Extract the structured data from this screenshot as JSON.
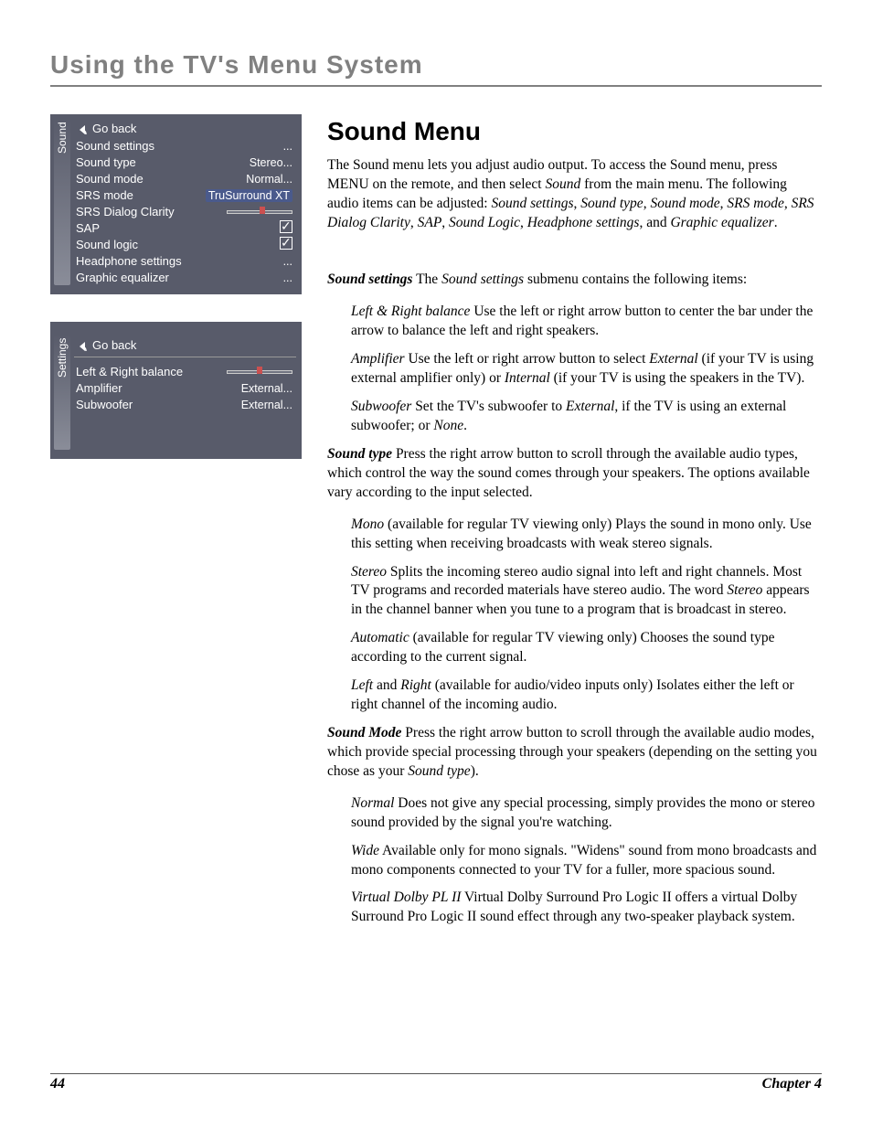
{
  "page_title": "Using the TV's Menu System",
  "section_title": "Sound Menu",
  "intro": "The Sound menu lets you adjust audio output. To access the Sound menu, press MENU on the remote, and then select ",
  "intro_sound": "Sound",
  "intro_2": " from the main menu. The following audio items can be adjusted: ",
  "intro_items": [
    "Sound settings",
    "Sound type",
    "Sound mode",
    "SRS mode",
    "SRS Dialog Clarity",
    "SAP",
    "Sound Logic",
    "Headphone settings"
  ],
  "intro_and": ", and ",
  "intro_last": "Graphic equalizer",
  "intro_period": ".",
  "osd1": {
    "tab": "Sound",
    "rows": [
      {
        "label": "Go back",
        "value": "",
        "type": "goback"
      },
      {
        "label": "Sound settings",
        "value": "...",
        "type": "text"
      },
      {
        "label": "Sound type",
        "value": "Stereo...",
        "type": "text"
      },
      {
        "label": "Sound mode",
        "value": "Normal...",
        "type": "text"
      },
      {
        "label": "SRS mode",
        "value": "TruSurround XT",
        "type": "hi"
      },
      {
        "label": "SRS Dialog Clarity",
        "value": "slider",
        "type": "slider",
        "thumb": 0.55
      },
      {
        "label": "SAP",
        "value": "",
        "type": "check"
      },
      {
        "label": "Sound logic",
        "value": "",
        "type": "check"
      },
      {
        "label": "Headphone settings",
        "value": "...",
        "type": "text"
      },
      {
        "label": "Graphic equalizer",
        "value": "...",
        "type": "text"
      }
    ]
  },
  "osd2": {
    "tab": "Settings",
    "rows": [
      {
        "label": "Go back",
        "value": "",
        "type": "goback"
      },
      {
        "label": "",
        "value": "",
        "type": "divider"
      },
      {
        "label": "Left & Right balance",
        "value": "slider",
        "type": "slider",
        "thumb": 0.5
      },
      {
        "label": "Amplifier",
        "value": "External...",
        "type": "text"
      },
      {
        "label": "Subwoofer",
        "value": "External...",
        "type": "text"
      }
    ]
  },
  "body": {
    "ss_head": "Sound settings",
    "ss_text": "   The ",
    "ss_sub": "Sound settings",
    "ss_text2": " submenu contains the following items:",
    "lr_head": "Left & Right balance",
    "lr_text": "    Use the left or right arrow button to center the bar under the arrow to balance the left and right speakers.",
    "amp_head": "Amplifier",
    "amp_text": "    Use the left or right arrow button to select ",
    "amp_ext": "External",
    "amp_text2": " (if your TV is using external amplifier only) or ",
    "amp_int": "Internal",
    "amp_text3": " (if your TV is using the speakers in the TV).",
    "sw_head": "Subwoofer",
    "sw_text": "   Set the TV's subwoofer to ",
    "sw_ext": "External",
    "sw_text2": ", if the TV is using an external subwoofer; or ",
    "sw_none": "None",
    "sw_text3": ".",
    "st_head": "Sound type",
    "st_text": "    Press the right arrow button to scroll through the available audio types, which control the way the sound comes through your speakers. The options available vary according to the input selected.",
    "mono_head": "Mono",
    "mono_text": " (available for regular TV viewing only)    Plays the sound in mono only. Use this setting when receiving broadcasts with weak stereo signals.",
    "stereo_head": "Stereo",
    "stereo_text": "    Splits the incoming stereo audio signal into left and right channels. Most TV programs and recorded materials have stereo audio. The word ",
    "stereo_w": "Stereo",
    "stereo_text2": " appears in the channel banner when you tune to a program that is broadcast in stereo.",
    "auto_head": "Automatic",
    "auto_text": " (available for regular TV viewing only)    Chooses the sound type according to the current signal.",
    "lr2_left": "Left",
    "lr2_and": " and ",
    "lr2_right": "Right",
    "lr2_text": " (available for audio/video inputs only)    Isolates either the left or right channel of the incoming audio.",
    "sm_head": "Sound Mode",
    "sm_text": "    Press the right arrow button to scroll through the available audio modes, which provide special processing through your speakers (depending on the setting you chose as your ",
    "sm_st": "Sound type",
    "sm_text2": ").",
    "norm_head": "Normal",
    "norm_text": "     Does not give any special processing, simply provides the mono or stereo sound provided by the signal you're watching.",
    "wide_head": "Wide",
    "wide_text": "    Available only for mono signals. \"Widens\" sound from mono broadcasts and mono components connected to your TV for a fuller, more spacious sound.",
    "vd_head": "Virtual Dolby PL II",
    "vd_text": "    Virtual Dolby Surround Pro Logic II offers a virtual Dolby Surround Pro Logic II sound effect through any two-speaker playback system."
  },
  "footer": {
    "page": "44",
    "chapter": "Chapter 4"
  },
  "colors": {
    "title_gray": "#808080",
    "osd_bg": "#585b6a",
    "osd_text": "#ffffff",
    "hi_bg": "#4a5a8c",
    "thumb": "#cc5050"
  }
}
